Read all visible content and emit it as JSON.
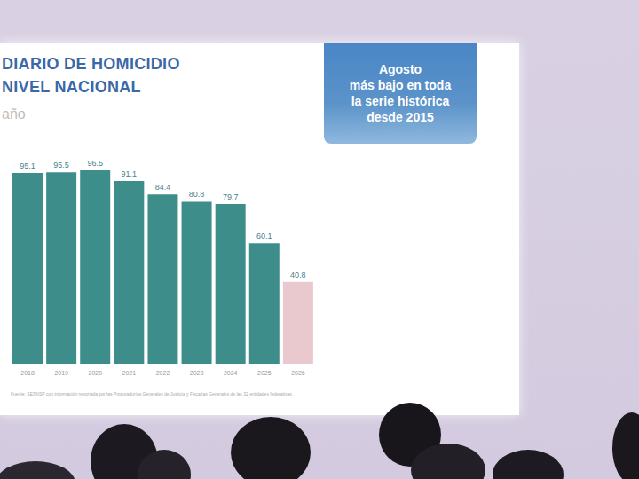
{
  "chart_data": {
    "type": "bar",
    "title": [
      "DIARIO DE HOMICIDIO",
      "NIVEL NACIONAL"
    ],
    "subtitle": "año",
    "annotation": [
      "Agosto",
      "más bajo en toda",
      "la serie histórica",
      "desde 2015"
    ],
    "source": "Fuente: SESNSP con información reportada por las Procuradurías Generales de Justicia y Fiscalías Generales de las 32 entidades federativas.",
    "categories": [
      "2018",
      "2019",
      "2020",
      "2021",
      "2022",
      "2023",
      "2024",
      "2025",
      "2026"
    ],
    "values": [
      95.1,
      95.5,
      96.5,
      91.1,
      84.4,
      80.8,
      79.7,
      60.1,
      40.8
    ],
    "colors": [
      "#3d8e8b",
      "#3d8e8b",
      "#3d8e8b",
      "#3d8e8b",
      "#3d8e8b",
      "#3d8e8b",
      "#3d8e8b",
      "#3d8e8b",
      "#e9c9cd"
    ],
    "ylim": [
      0,
      100
    ],
    "grid": false,
    "data_labels": true,
    "tick_labels": "x"
  }
}
